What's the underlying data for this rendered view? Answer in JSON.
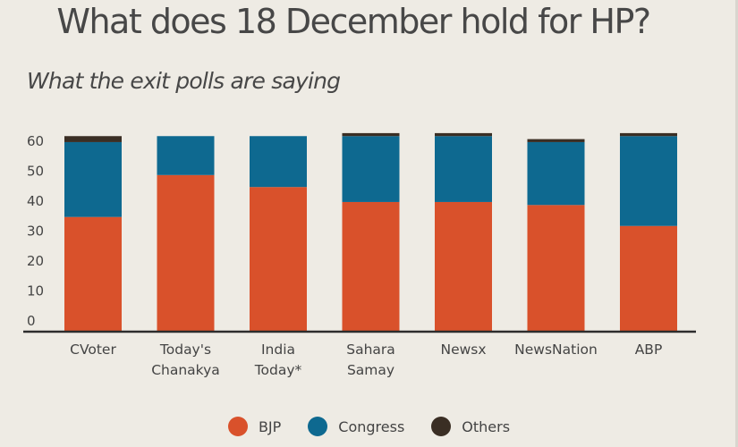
{
  "chart_data": {
    "type": "bar",
    "stacked": true,
    "title": "What does 18 December hold for HP?",
    "subtitle": "What the exit polls are saying",
    "categories": [
      [
        "CVoter"
      ],
      [
        "Today's",
        "Chanakya"
      ],
      [
        "India",
        "Today*"
      ],
      [
        "Sahara",
        "Samay"
      ],
      [
        "Newsx"
      ],
      [
        "NewsNation"
      ],
      [
        "ABP"
      ]
    ],
    "series": [
      {
        "name": "BJP",
        "color": "#d9512b",
        "values": [
          38,
          52,
          48,
          43,
          43,
          42,
          35
        ]
      },
      {
        "name": "Congress",
        "color": "#0e6990",
        "values": [
          25,
          13,
          17,
          22,
          22,
          21,
          30
        ]
      },
      {
        "name": "Others",
        "color": "#3a2e24",
        "values": [
          2,
          0,
          0,
          1,
          1,
          1,
          1
        ]
      }
    ],
    "yticks": [
      0,
      10,
      20,
      30,
      40,
      50,
      60
    ],
    "ylim": [
      0,
      65
    ],
    "legend_position": "bottom-center",
    "grid": false
  }
}
